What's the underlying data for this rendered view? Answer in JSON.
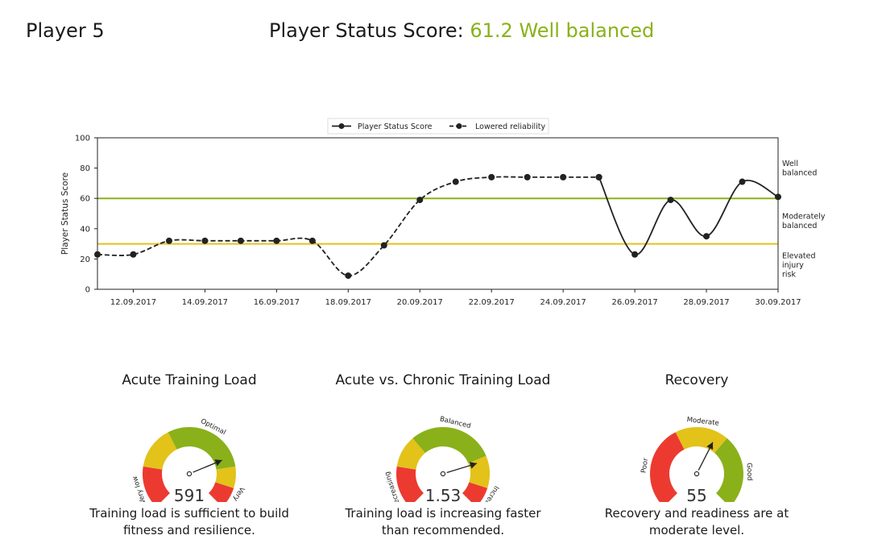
{
  "header": {
    "player": "Player 5",
    "status_label": "Player Status Score:",
    "status_value": "61.2",
    "status_text": "Well balanced",
    "status_color": "#8ab119"
  },
  "chart_data": {
    "type": "line",
    "ylabel": "Player Status Score",
    "ylim": [
      0,
      100
    ],
    "yticks": [
      0,
      20,
      40,
      60,
      80,
      100
    ],
    "xlim": [
      "2017-09-11",
      "2017-09-30"
    ],
    "xticks": [
      "12.09.2017",
      "14.09.2017",
      "16.09.2017",
      "18.09.2017",
      "20.09.2017",
      "22.09.2017",
      "24.09.2017",
      "26.09.2017",
      "28.09.2017",
      "30.09.2017"
    ],
    "legend": {
      "placement": "top-center",
      "entries": [
        "Player Status Score",
        "Lowered reliability"
      ]
    },
    "thresholds": [
      {
        "value": 60,
        "color": "#8ab119"
      },
      {
        "value": 30,
        "color": "#e3c21a"
      }
    ],
    "zone_labels": [
      {
        "lines": [
          "Well",
          "balanced"
        ],
        "y": 80
      },
      {
        "lines": [
          "Moderately",
          "balanced"
        ],
        "y": 45
      },
      {
        "lines": [
          "Elevated",
          "injury",
          "risk"
        ],
        "y": 16
      }
    ],
    "series": [
      {
        "name": "Lowered reliability",
        "style": "dashed",
        "x": [
          "2017-09-11",
          "2017-09-12",
          "2017-09-13",
          "2017-09-14",
          "2017-09-15",
          "2017-09-16",
          "2017-09-17",
          "2017-09-18",
          "2017-09-19",
          "2017-09-20",
          "2017-09-21",
          "2017-09-22",
          "2017-09-23",
          "2017-09-24",
          "2017-09-25"
        ],
        "values": [
          23,
          23,
          32,
          32,
          32,
          32,
          32,
          9,
          29,
          59,
          71,
          74,
          74,
          74,
          74
        ]
      },
      {
        "name": "Player Status Score",
        "style": "solid",
        "x": [
          "2017-09-25",
          "2017-09-26",
          "2017-09-27",
          "2017-09-28",
          "2017-09-29",
          "2017-09-30"
        ],
        "values": [
          74,
          23,
          59,
          35,
          71,
          61
        ]
      }
    ]
  },
  "gauges": [
    {
      "title": "Acute Training Load",
      "value": "591",
      "needle_fraction": 0.75,
      "segments": [
        {
          "label": "Very low",
          "color": "#ec3a31",
          "fraction": 0.2
        },
        {
          "label": "",
          "color": "#e3c21a",
          "fraction": 0.2
        },
        {
          "label": "Optimal",
          "color": "#8ab119",
          "fraction": 0.4
        },
        {
          "label": "",
          "color": "#e3c21a",
          "fraction": 0.1
        },
        {
          "label": "Very high",
          "color": "#ec3a31",
          "fraction": 0.1
        }
      ],
      "description": [
        "Training load is sufficient to build",
        "fitness and resilience."
      ]
    },
    {
      "title": "Acute vs. Chronic Training Load",
      "value": "1.53",
      "needle_fraction": 0.77,
      "segments": [
        {
          "label": "Decreasing",
          "color": "#ec3a31",
          "fraction": 0.2
        },
        {
          "label": "",
          "color": "#e3c21a",
          "fraction": 0.15
        },
        {
          "label": "Balanced",
          "color": "#8ab119",
          "fraction": 0.4
        },
        {
          "label": "",
          "color": "#e3c21a",
          "fraction": 0.15
        },
        {
          "label": "Increasing",
          "color": "#ec3a31",
          "fraction": 0.1
        }
      ],
      "description": [
        "Training load is increasing faster",
        "than recommended."
      ]
    },
    {
      "title": "Recovery",
      "value": "55",
      "needle_fraction": 0.6,
      "segments": [
        {
          "label": "Poor",
          "color": "#ec3a31",
          "fraction": 0.4
        },
        {
          "label": "Moderate",
          "color": "#e3c21a",
          "fraction": 0.25
        },
        {
          "label": "Good",
          "color": "#8ab119",
          "fraction": 0.35
        }
      ],
      "description": [
        "Recovery and readiness are at",
        "moderate level."
      ]
    }
  ]
}
